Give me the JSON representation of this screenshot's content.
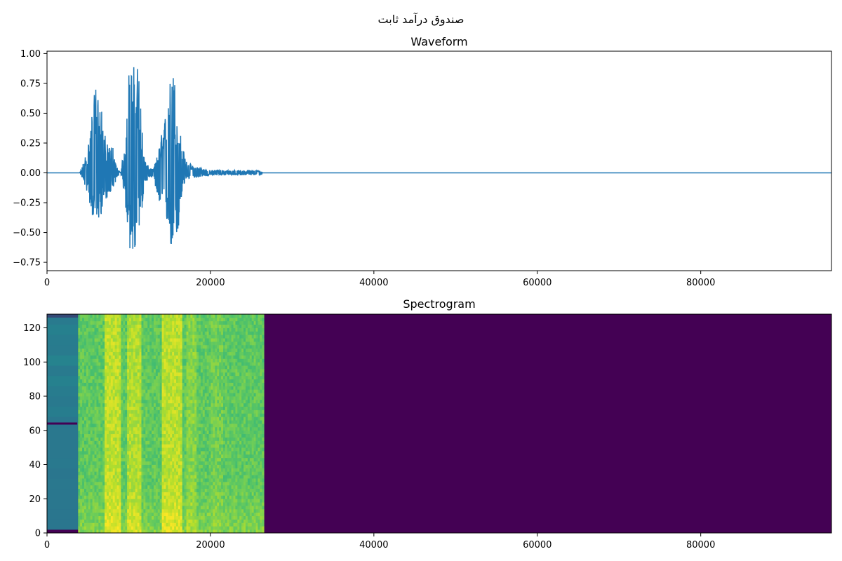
{
  "figure": {
    "suptitle": "صندوق درآمد ثابت"
  },
  "chart_data": [
    {
      "type": "line",
      "title": "Waveform",
      "xlabel": "",
      "ylabel": "",
      "xlim": [
        0,
        96000
      ],
      "ylim": [
        -0.82,
        1.02
      ],
      "xticks": [
        0,
        20000,
        40000,
        60000,
        80000
      ],
      "xtick_labels": [
        "0",
        "20000",
        "40000",
        "60000",
        "80000"
      ],
      "yticks": [
        1.0,
        0.75,
        0.5,
        0.25,
        0.0,
        -0.25,
        -0.5,
        -0.75
      ],
      "ytick_labels": [
        "1.00",
        "0.75",
        "0.50",
        "0.25",
        "0.00",
        "−0.25",
        "−0.50",
        "−0.75"
      ],
      "grid": false,
      "series_color": "#1f77b4",
      "envelope": {
        "x": [
          0,
          4000,
          4200,
          5000,
          5500,
          6000,
          6500,
          7000,
          7500,
          8000,
          8500,
          9000,
          9500,
          10000,
          10500,
          11000,
          11300,
          11600,
          12000,
          12500,
          13000,
          13500,
          14000,
          14500,
          15000,
          15500,
          16000,
          16500,
          17000,
          17500,
          18000,
          18500,
          19000,
          19500,
          20000,
          21000,
          22000,
          23000,
          24000,
          25000,
          26000,
          26300,
          26400,
          96000
        ],
        "upper": [
          0,
          0,
          0.03,
          0.22,
          0.52,
          0.75,
          0.62,
          0.36,
          0.2,
          0.25,
          0.05,
          0.0,
          0.25,
          0.85,
          0.9,
          0.93,
          0.86,
          0.42,
          0.1,
          0.05,
          0.03,
          0.15,
          0.32,
          0.5,
          0.76,
          0.9,
          0.5,
          0.26,
          0.1,
          0.08,
          0.05,
          0.06,
          0.04,
          0.03,
          0.02,
          0.03,
          0.02,
          0.02,
          0.02,
          0.02,
          0.02,
          0.01,
          0,
          0
        ],
        "lower": [
          0,
          0,
          -0.03,
          -0.18,
          -0.36,
          -0.45,
          -0.38,
          -0.26,
          -0.18,
          -0.16,
          -0.05,
          0.0,
          -0.2,
          -0.62,
          -0.72,
          -0.66,
          -0.52,
          -0.32,
          -0.08,
          -0.05,
          -0.03,
          -0.2,
          -0.42,
          -0.35,
          -0.58,
          -0.74,
          -0.55,
          -0.2,
          -0.05,
          -0.05,
          -0.04,
          -0.04,
          -0.03,
          -0.03,
          -0.02,
          -0.02,
          -0.02,
          -0.02,
          -0.02,
          -0.02,
          -0.02,
          -0.01,
          0,
          0
        ]
      }
    },
    {
      "type": "heatmap",
      "title": "Spectrogram",
      "xlabel": "",
      "ylabel": "",
      "xlim": [
        0,
        96000
      ],
      "ylim": [
        0,
        128
      ],
      "xticks": [
        0,
        20000,
        40000,
        60000,
        80000
      ],
      "xtick_labels": [
        "0",
        "20000",
        "40000",
        "60000",
        "80000"
      ],
      "yticks": [
        0,
        20,
        40,
        60,
        80,
        100,
        120
      ],
      "ytick_labels": [
        "0",
        "20",
        "40",
        "60",
        "80",
        "100",
        "120"
      ],
      "grid": false,
      "colormap": "viridis",
      "regions": [
        {
          "x0": 0,
          "x1": 3800,
          "level": 0.42,
          "note_color": "#2a788e"
        },
        {
          "x0": 3800,
          "x1": 26400,
          "level": 0.75
        },
        {
          "x0": 26400,
          "x1": 96000,
          "level": 0.0
        }
      ],
      "speech_bands": [
        {
          "x0": 7000,
          "x1": 9000,
          "level": 0.9
        },
        {
          "x0": 9800,
          "x1": 11500,
          "level": 0.88
        },
        {
          "x0": 14000,
          "x1": 16500,
          "level": 0.9
        },
        {
          "x0": 17000,
          "x1": 18200,
          "level": 0.82
        },
        {
          "x0": 20000,
          "x1": 21500,
          "level": 0.78
        }
      ],
      "line_at_bin": 64,
      "line_x_range": [
        0,
        3700
      ],
      "colors": {
        "low": "#440154",
        "mid": "#2a788e",
        "high": "#fde725"
      }
    }
  ]
}
